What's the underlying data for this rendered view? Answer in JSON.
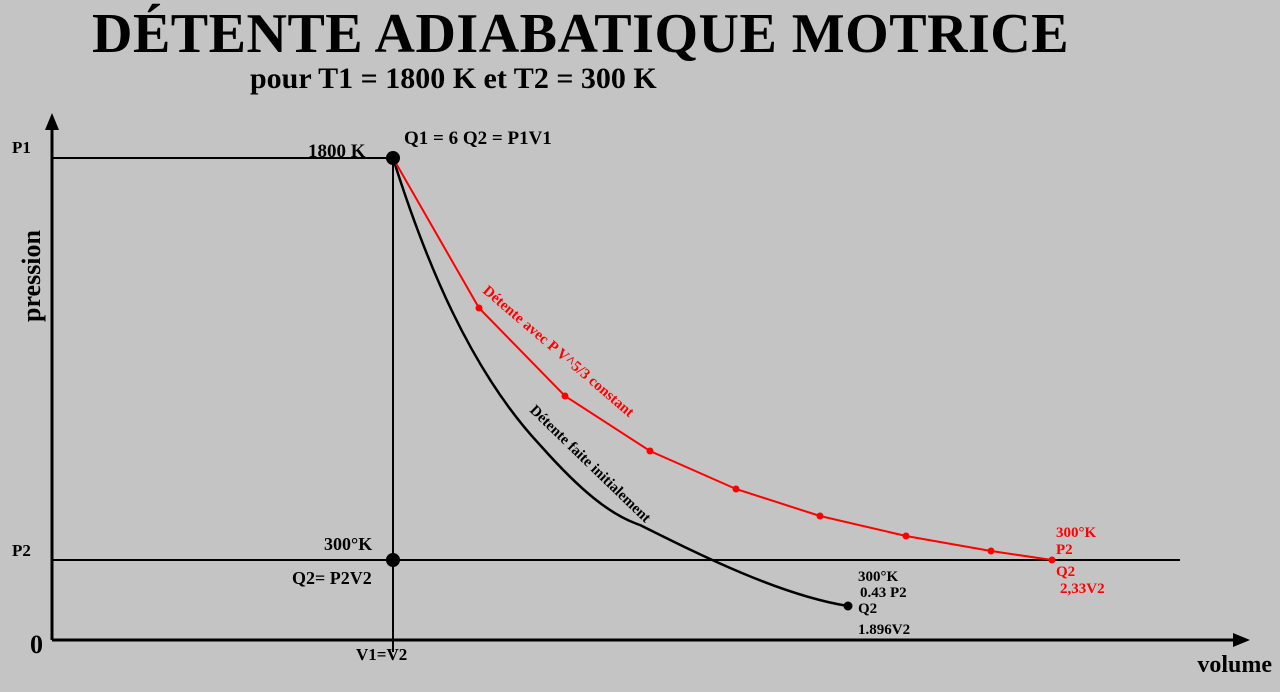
{
  "title": "DÉTENTE ADIABATIQUE MOTRICE",
  "subtitle": "pour T1 = 1800 K et T2 = 300 K",
  "colors": {
    "background": "#c4c4c4",
    "ink": "#000000",
    "red_curve": "#ff0000"
  },
  "axes": {
    "y_label": "pression",
    "x_label": "volume",
    "origin": "0",
    "p1": "P1",
    "p2": "P2",
    "v1": "V1=V2"
  },
  "points": {
    "start_temp": "1800 K",
    "start_note": "Q1 = 6 Q2 = P1V1",
    "iso_temp": "300°K",
    "iso_note": "Q2= P2V2"
  },
  "curves": {
    "red_label": "Détente avec P V^5/3 constant",
    "black_label": "Détente faite initialement",
    "black_end": {
      "temp": "300°K",
      "pressure": "0.43 P2",
      "q": "Q2",
      "volume": "1.896V2"
    },
    "red_end": {
      "temp": "300°K",
      "pressure": "P2",
      "q": "Q2",
      "volume": "2,33V2"
    }
  }
}
